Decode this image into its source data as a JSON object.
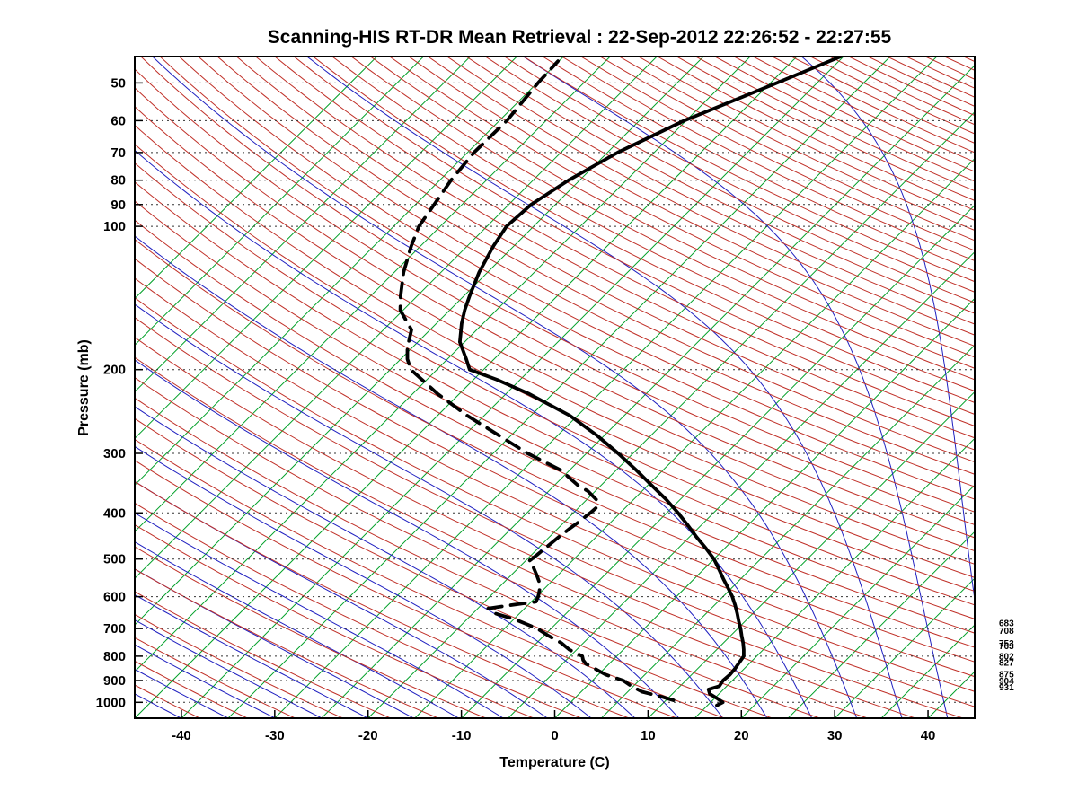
{
  "chart_data": {
    "type": "line",
    "subtype": "skewt_logp_sounding",
    "title": "Scanning-HIS RT-DR Mean Retrieval : 22-Sep-2012 22:26:52 - 22:27:55",
    "xlabel": "Temperature (C)",
    "ylabel": "Pressure (mb)",
    "xlim": [
      -45,
      45
    ],
    "pressure_range": [
      44,
      1080
    ],
    "x_ticks": [
      -40,
      -30,
      -20,
      -10,
      0,
      10,
      20,
      30,
      40
    ],
    "pressure_ticks": [
      50,
      60,
      70,
      80,
      90,
      100,
      200,
      300,
      400,
      500,
      600,
      700,
      800,
      900,
      1000
    ],
    "grid": {
      "isobars_dotted": true,
      "legend": "none"
    },
    "line_families": {
      "isotherms_c": {
        "start": -90,
        "end": 45,
        "step": 5,
        "color": "#00a028"
      },
      "dry_adiabats_theta_k": {
        "start": 230,
        "end": 620,
        "step": 5,
        "color": "#c03028"
      },
      "moist_adiabats_tw_c": {
        "start": -60,
        "end": 50,
        "step": 5,
        "color": "#2020c0"
      }
    },
    "series": [
      {
        "name": "temperature",
        "style": "solid",
        "color": "#000000",
        "points_p_t": [
          [
            1015,
            16.0
          ],
          [
            1000,
            16.3
          ],
          [
            980,
            15.2
          ],
          [
            960,
            14.0
          ],
          [
            940,
            13.4
          ],
          [
            925,
            14.2
          ],
          [
            900,
            14.0
          ],
          [
            875,
            14.1
          ],
          [
            850,
            14.0
          ],
          [
            825,
            13.8
          ],
          [
            800,
            13.6
          ],
          [
            775,
            12.9
          ],
          [
            750,
            12.1
          ],
          [
            725,
            11.2
          ],
          [
            700,
            10.3
          ],
          [
            675,
            9.3
          ],
          [
            650,
            8.3
          ],
          [
            625,
            7.2
          ],
          [
            600,
            6.0
          ],
          [
            575,
            4.6
          ],
          [
            550,
            3.1
          ],
          [
            525,
            1.6
          ],
          [
            500,
            0.0
          ],
          [
            475,
            -2.0
          ],
          [
            450,
            -4.2
          ],
          [
            425,
            -6.4
          ],
          [
            400,
            -8.8
          ],
          [
            375,
            -11.5
          ],
          [
            350,
            -14.6
          ],
          [
            325,
            -17.9
          ],
          [
            300,
            -21.6
          ],
          [
            275,
            -25.8
          ],
          [
            250,
            -30.8
          ],
          [
            225,
            -37.5
          ],
          [
            210,
            -42.5
          ],
          [
            200,
            -46.5
          ],
          [
            190,
            -48.0
          ],
          [
            175,
            -50.5
          ],
          [
            160,
            -52.3
          ],
          [
            150,
            -53.4
          ],
          [
            140,
            -54.4
          ],
          [
            125,
            -55.9
          ],
          [
            110,
            -57.2
          ],
          [
            100,
            -57.9
          ],
          [
            90,
            -57.6
          ],
          [
            80,
            -56.2
          ],
          [
            70,
            -53.9
          ],
          [
            60,
            -50.2
          ],
          [
            50,
            -44.3
          ],
          [
            44,
            -40.3
          ]
        ]
      },
      {
        "name": "dewpoint",
        "style": "dashed",
        "color": "#000000",
        "points_p_t": [
          [
            990,
            10.8
          ],
          [
            975,
            9.3
          ],
          [
            950,
            6.5
          ],
          [
            925,
            4.8
          ],
          [
            900,
            3.3
          ],
          [
            875,
            0.8
          ],
          [
            850,
            -1.0
          ],
          [
            830,
            -2.5
          ],
          [
            815,
            -3.2
          ],
          [
            800,
            -3.7
          ],
          [
            775,
            -5.8
          ],
          [
            750,
            -7.4
          ],
          [
            725,
            -9.5
          ],
          [
            700,
            -11.5
          ],
          [
            670,
            -14.8
          ],
          [
            650,
            -17.7
          ],
          [
            635,
            -18.9
          ],
          [
            625,
            -16.8
          ],
          [
            615,
            -14.5
          ],
          [
            600,
            -14.8
          ],
          [
            580,
            -15.4
          ],
          [
            560,
            -16.2
          ],
          [
            540,
            -17.3
          ],
          [
            520,
            -18.5
          ],
          [
            505,
            -19.6
          ],
          [
            490,
            -19.4
          ],
          [
            470,
            -19.2
          ],
          [
            450,
            -19.0
          ],
          [
            430,
            -18.7
          ],
          [
            420,
            -18.5
          ],
          [
            400,
            -18.2
          ],
          [
            390,
            -18.1
          ],
          [
            375,
            -19.0
          ],
          [
            360,
            -20.8
          ],
          [
            350,
            -22.5
          ],
          [
            325,
            -26.0
          ],
          [
            300,
            -31.3
          ],
          [
            275,
            -36.3
          ],
          [
            250,
            -41.8
          ],
          [
            225,
            -47.3
          ],
          [
            200,
            -52.8
          ],
          [
            190,
            -54.3
          ],
          [
            180,
            -55.5
          ],
          [
            165,
            -57.0
          ],
          [
            150,
            -60.3
          ],
          [
            140,
            -61.8
          ],
          [
            125,
            -64.0
          ],
          [
            110,
            -66.0
          ],
          [
            100,
            -67.3
          ],
          [
            90,
            -68.0
          ],
          [
            80,
            -68.8
          ],
          [
            70,
            -69.3
          ],
          [
            60,
            -69.2
          ],
          [
            50,
            -69.9
          ],
          [
            45,
            -70.1
          ]
        ]
      }
    ],
    "right_level_labels": [
      683,
      708,
      753,
      763,
      802,
      827,
      875,
      904,
      931
    ]
  }
}
